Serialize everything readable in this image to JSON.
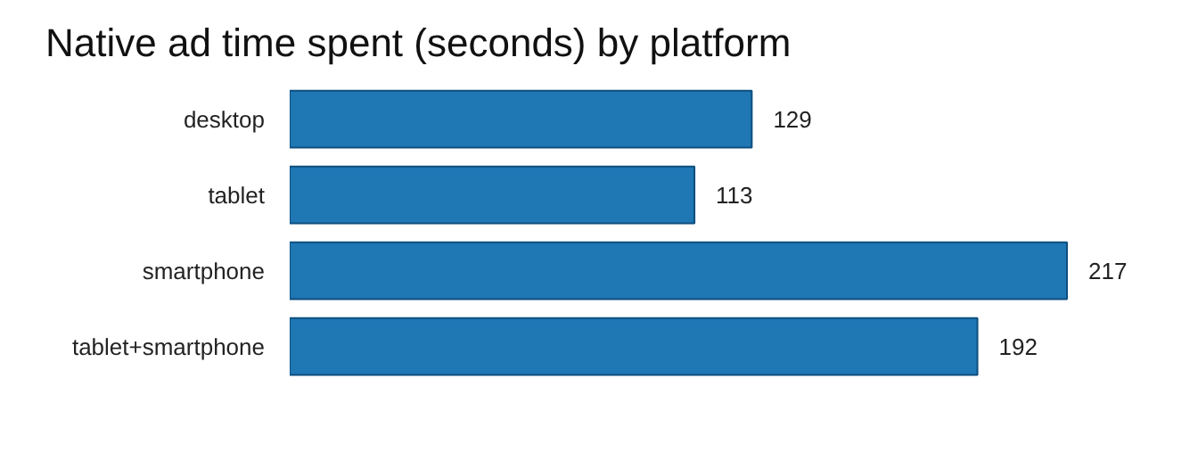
{
  "chart_data": {
    "type": "bar",
    "orientation": "horizontal",
    "title": "Native ad time spent (seconds) by platform",
    "categories": [
      "desktop",
      "tablet",
      "smartphone",
      "tablet+smartphone"
    ],
    "values": [
      129,
      113,
      217,
      192
    ],
    "color": "#1f77b4",
    "data_labels": true
  }
}
